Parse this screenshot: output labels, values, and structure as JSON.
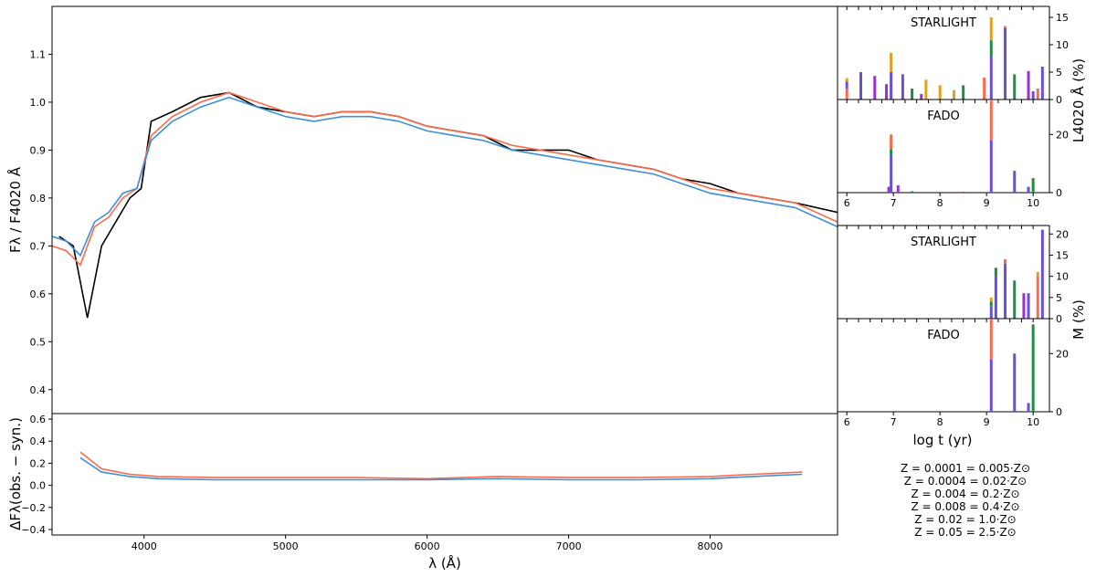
{
  "chart_data": [
    {
      "id": "spectrum",
      "type": "line",
      "ylabel": "Fλ / F4020 Å",
      "xlim": [
        3350,
        8900
      ],
      "ylim": [
        0.35,
        1.2
      ],
      "yticks": [
        "0.4",
        "0.5",
        "0.6",
        "0.7",
        "0.8",
        "0.9",
        "1.0",
        "1.1"
      ],
      "series": [
        {
          "role": "observed",
          "color": "#000000",
          "x": [
            3400,
            3500,
            3600,
            3700,
            3800,
            3900,
            3980,
            4050,
            4200,
            4400,
            4600,
            4800,
            5000,
            5200,
            5400,
            5600,
            5800,
            6000,
            6200,
            6400,
            6600,
            6800,
            7000,
            7200,
            7400,
            7600,
            7800,
            8000,
            8200,
            8400,
            8600,
            8900
          ],
          "y": [
            0.72,
            0.7,
            0.55,
            0.7,
            0.75,
            0.8,
            0.82,
            0.96,
            0.98,
            1.01,
            1.02,
            0.99,
            0.98,
            0.97,
            0.98,
            0.98,
            0.97,
            0.95,
            0.94,
            0.93,
            0.9,
            0.9,
            0.9,
            0.88,
            0.87,
            0.86,
            0.84,
            0.83,
            0.81,
            0.8,
            0.79,
            0.77
          ]
        },
        {
          "role": "starlight",
          "color": "#fa6a4b",
          "x": [
            3350,
            3450,
            3550,
            3650,
            3750,
            3850,
            3950,
            4050,
            4200,
            4400,
            4600,
            4800,
            5000,
            5200,
            5400,
            5600,
            5800,
            6000,
            6200,
            6400,
            6600,
            6800,
            7000,
            7200,
            7400,
            7600,
            7800,
            8000,
            8200,
            8400,
            8600,
            8900
          ],
          "y": [
            0.7,
            0.69,
            0.66,
            0.74,
            0.76,
            0.8,
            0.82,
            0.93,
            0.97,
            1.0,
            1.02,
            1.0,
            0.98,
            0.97,
            0.98,
            0.98,
            0.97,
            0.95,
            0.94,
            0.93,
            0.91,
            0.9,
            0.89,
            0.88,
            0.87,
            0.86,
            0.84,
            0.82,
            0.81,
            0.8,
            0.79,
            0.75
          ]
        },
        {
          "role": "fado",
          "color": "#3f8fd6",
          "x": [
            3350,
            3450,
            3550,
            3650,
            3750,
            3850,
            3950,
            4050,
            4200,
            4400,
            4600,
            4800,
            5000,
            5200,
            5400,
            5600,
            5800,
            6000,
            6200,
            6400,
            6600,
            6800,
            7000,
            7200,
            7400,
            7600,
            7800,
            8000,
            8200,
            8400,
            8600,
            8900
          ],
          "y": [
            0.72,
            0.71,
            0.68,
            0.75,
            0.77,
            0.81,
            0.82,
            0.92,
            0.96,
            0.99,
            1.01,
            0.99,
            0.97,
            0.96,
            0.97,
            0.97,
            0.96,
            0.94,
            0.93,
            0.92,
            0.9,
            0.89,
            0.88,
            0.87,
            0.86,
            0.85,
            0.83,
            0.81,
            0.8,
            0.79,
            0.78,
            0.74
          ]
        }
      ]
    },
    {
      "id": "residuals",
      "type": "line",
      "xlabel": "λ (Å)",
      "ylabel": "ΔFλ(obs. − syn.)",
      "xlim": [
        3350,
        8900
      ],
      "ylim": [
        -0.45,
        0.65
      ],
      "xticks": [
        "4000",
        "5000",
        "6000",
        "7000",
        "8000"
      ],
      "yticks": [
        "−0.4",
        "−0.2",
        "0.0",
        "0.2",
        "0.4",
        "0.6"
      ],
      "series": [
        {
          "role": "starlight",
          "color": "#fa6a4b",
          "x": [
            3550,
            3700,
            3900,
            4100,
            4500,
            5000,
            5500,
            6000,
            6500,
            7000,
            7500,
            8000,
            8300,
            8650
          ],
          "y": [
            0.3,
            0.15,
            0.1,
            0.08,
            0.07,
            0.07,
            0.07,
            0.06,
            0.08,
            0.07,
            0.07,
            0.08,
            0.1,
            0.12
          ]
        },
        {
          "role": "fado",
          "color": "#3f8fd6",
          "x": [
            3550,
            3700,
            3900,
            4100,
            4500,
            5000,
            5500,
            6000,
            6500,
            7000,
            7500,
            8000,
            8300,
            8650
          ],
          "y": [
            0.25,
            0.12,
            0.08,
            0.06,
            0.05,
            0.05,
            0.05,
            0.05,
            0.06,
            0.05,
            0.05,
            0.06,
            0.08,
            0.1
          ]
        }
      ]
    },
    {
      "id": "light-starlight",
      "type": "bar",
      "title": "STARLIGHT",
      "xlim": [
        5.8,
        10.35
      ],
      "ylim": [
        0,
        17
      ],
      "yticks": [
        "0",
        "5",
        "10",
        "15"
      ],
      "ytick_values": [
        0,
        5,
        10,
        15
      ],
      "bars": [
        {
          "x": 6.0,
          "parts": [
            {
              "z": "Z05",
              "v": 2.0
            },
            {
              "z": "Z0004",
              "v": 1.3
            },
            {
              "z": "Z002",
              "v": 0.6
            }
          ]
        },
        {
          "x": 6.3,
          "parts": [
            {
              "z": "Z0004",
              "v": 5.0
            }
          ]
        },
        {
          "x": 6.6,
          "parts": [
            {
              "z": "Z0001",
              "v": 4.3
            }
          ]
        },
        {
          "x": 6.85,
          "parts": [
            {
              "z": "Z0001",
              "v": 2.8
            }
          ]
        },
        {
          "x": 6.95,
          "parts": [
            {
              "z": "Z0004",
              "v": 5.0
            },
            {
              "z": "Z002",
              "v": 3.5
            }
          ]
        },
        {
          "x": 7.2,
          "parts": [
            {
              "z": "Z0004",
              "v": 4.6
            }
          ]
        },
        {
          "x": 7.4,
          "parts": [
            {
              "z": "Z0008",
              "v": 2.0
            }
          ]
        },
        {
          "x": 7.6,
          "parts": [
            {
              "z": "Z0001",
              "v": 1.0
            }
          ]
        },
        {
          "x": 7.7,
          "parts": [
            {
              "z": "Z002",
              "v": 3.6
            }
          ]
        },
        {
          "x": 8.0,
          "parts": [
            {
              "z": "Z002",
              "v": 2.6
            }
          ]
        },
        {
          "x": 8.3,
          "parts": [
            {
              "z": "Z002",
              "v": 1.7
            }
          ]
        },
        {
          "x": 8.5,
          "parts": [
            {
              "z": "Z0008",
              "v": 2.6
            }
          ]
        },
        {
          "x": 8.95,
          "parts": [
            {
              "z": "Z05",
              "v": 4.0
            }
          ]
        },
        {
          "x": 9.1,
          "parts": [
            {
              "z": "Z0004",
              "v": 8.0
            },
            {
              "z": "Z0008",
              "v": 2.8
            },
            {
              "z": "Z002",
              "v": 4.2
            }
          ]
        },
        {
          "x": 9.4,
          "parts": [
            {
              "z": "Z0004",
              "v": 13.0
            },
            {
              "z": "Z05",
              "v": 0.4
            }
          ]
        },
        {
          "x": 9.6,
          "parts": [
            {
              "z": "Z0008",
              "v": 4.6
            }
          ]
        },
        {
          "x": 9.9,
          "parts": [
            {
              "z": "Z0001",
              "v": 5.2
            }
          ]
        },
        {
          "x": 10.0,
          "parts": [
            {
              "z": "Z0004",
              "v": 1.5
            }
          ]
        },
        {
          "x": 10.1,
          "parts": [
            {
              "z": "Z05",
              "v": 2.0
            }
          ]
        },
        {
          "x": 10.2,
          "parts": [
            {
              "z": "Z0004",
              "v": 6.0
            }
          ]
        }
      ]
    },
    {
      "id": "light-fado",
      "type": "bar",
      "title": "FADO",
      "xlim": [
        5.8,
        10.35
      ],
      "ylim": [
        0,
        32
      ],
      "yticks": [
        "0",
        "20"
      ],
      "ytick_values": [
        0,
        20
      ],
      "xticks": [
        "6",
        "7",
        "8",
        "9",
        "10"
      ],
      "xtick_values": [
        6,
        7,
        8,
        9,
        10
      ],
      "bars": [
        {
          "x": 6.9,
          "parts": [
            {
              "z": "Z0001",
              "v": 2.0
            }
          ]
        },
        {
          "x": 6.95,
          "parts": [
            {
              "z": "Z0004",
              "v": 13.0
            },
            {
              "z": "Z0008",
              "v": 2.0
            },
            {
              "z": "Z05",
              "v": 5.0
            }
          ]
        },
        {
          "x": 7.1,
          "parts": [
            {
              "z": "Z0001",
              "v": 2.5
            }
          ]
        },
        {
          "x": 7.4,
          "parts": [
            {
              "z": "Z0008",
              "v": 0.5
            }
          ]
        },
        {
          "x": 8.5,
          "parts": [
            {
              "z": "Z0001",
              "v": 0.3
            }
          ]
        },
        {
          "x": 9.1,
          "parts": [
            {
              "z": "Z0004",
              "v": 18.0
            },
            {
              "z": "Z05",
              "v": 14.0
            }
          ]
        },
        {
          "x": 9.6,
          "parts": [
            {
              "z": "Z0004",
              "v": 7.5
            }
          ]
        },
        {
          "x": 9.9,
          "parts": [
            {
              "z": "Z0004",
              "v": 2.0
            }
          ]
        },
        {
          "x": 10.0,
          "parts": [
            {
              "z": "Z0008",
              "v": 5.0
            }
          ]
        }
      ]
    },
    {
      "id": "mass-starlight",
      "type": "bar",
      "title": "STARLIGHT",
      "xlim": [
        5.8,
        10.35
      ],
      "ylim": [
        0,
        22
      ],
      "yticks": [
        "0",
        "5",
        "10",
        "15",
        "20"
      ],
      "ytick_values": [
        0,
        5,
        10,
        15,
        20
      ],
      "bars": [
        {
          "x": 9.1,
          "parts": [
            {
              "z": "Z0004",
              "v": 3.0
            },
            {
              "z": "Z0008",
              "v": 1.0
            },
            {
              "z": "Z002",
              "v": 1.0
            }
          ]
        },
        {
          "x": 9.2,
          "parts": [
            {
              "z": "Z0004",
              "v": 10.0
            },
            {
              "z": "Z0008",
              "v": 2.0
            }
          ]
        },
        {
          "x": 9.4,
          "parts": [
            {
              "z": "Z0004",
              "v": 13.0
            },
            {
              "z": "Z05",
              "v": 1.0
            }
          ]
        },
        {
          "x": 9.6,
          "parts": [
            {
              "z": "Z0008",
              "v": 9.0
            }
          ]
        },
        {
          "x": 9.8,
          "parts": [
            {
              "z": "Z0001",
              "v": 6.0
            }
          ]
        },
        {
          "x": 9.9,
          "parts": [
            {
              "z": "Z0004",
              "v": 6.0
            }
          ]
        },
        {
          "x": 10.1,
          "parts": [
            {
              "z": "Z05",
              "v": 10.0
            },
            {
              "z": "Z002",
              "v": 1.0
            }
          ]
        },
        {
          "x": 10.2,
          "parts": [
            {
              "z": "Z0004",
              "v": 21.0
            }
          ]
        }
      ]
    },
    {
      "id": "mass-fado",
      "type": "bar",
      "title": "FADO",
      "xlim": [
        5.8,
        10.35
      ],
      "ylim": [
        0,
        32
      ],
      "yticks": [
        "0",
        "20"
      ],
      "ytick_values": [
        0,
        20
      ],
      "xticks": [
        "6",
        "7",
        "8",
        "9",
        "10"
      ],
      "xtick_values": [
        6,
        7,
        8,
        9,
        10
      ],
      "bars": [
        {
          "x": 9.1,
          "parts": [
            {
              "z": "Z0004",
              "v": 18.0
            },
            {
              "z": "Z05",
              "v": 14.0
            }
          ]
        },
        {
          "x": 9.6,
          "parts": [
            {
              "z": "Z0004",
              "v": 20.0
            }
          ]
        },
        {
          "x": 9.9,
          "parts": [
            {
              "z": "Z0004",
              "v": 3.0
            }
          ]
        },
        {
          "x": 10.0,
          "parts": [
            {
              "z": "Z0008",
              "v": 30.0
            }
          ]
        }
      ]
    }
  ],
  "axis_labels": {
    "light_ylabel": "L4020 Å (%)",
    "mass_ylabel": "M (%)",
    "age_xlabel": "log t (yr)"
  },
  "metallicity_legend": [
    {
      "key": "Z0001",
      "label": "Z = 0.0001 = 0.005·Z⊙",
      "color": "#9a32cd"
    },
    {
      "key": "Z0004",
      "label": "Z = 0.0004 = 0.02·Z⊙",
      "color": "#6a4fd8"
    },
    {
      "key": "Z0040",
      "label": "Z = 0.004 = 0.2·Z⊙",
      "color": "#3f6fe0"
    },
    {
      "key": "Z0008",
      "label": "Z = 0.008 = 0.4·Z⊙",
      "color": "#238b45"
    },
    {
      "key": "Z002",
      "label": "Z = 0.02 = 1.0·Z⊙",
      "color": "#e0a020"
    },
    {
      "key": "Z05",
      "label": "Z = 0.05 = 2.5·Z⊙",
      "color": "#fa6a4b"
    }
  ]
}
